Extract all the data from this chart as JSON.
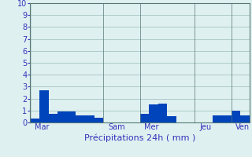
{
  "bar_values": [
    0.3,
    2.7,
    0.7,
    0.9,
    0.9,
    0.6,
    0.6,
    0.4,
    0.0,
    0.0,
    0.0,
    0.0,
    0.7,
    1.5,
    1.6,
    0.5,
    0.0,
    0.0,
    0.0,
    0.0,
    0.6,
    0.6,
    1.0,
    0.6
  ],
  "day_labels": [
    "Mar",
    "Sam",
    "Mer",
    "Jeu",
    "Ven"
  ],
  "xlabel": "Précipitations 24h ( mm )",
  "ylim": [
    0,
    10
  ],
  "yticks": [
    0,
    1,
    2,
    3,
    4,
    5,
    6,
    7,
    8,
    9,
    10
  ],
  "bar_color": "#0044bb",
  "background_color": "#dff0f0",
  "grid_color": "#aac8c8",
  "axis_label_color": "#3333bb",
  "tick_label_color": "#3333bb",
  "vline_color": "#557777",
  "xlabel_fontsize": 8,
  "tick_fontsize": 7,
  "day_boundaries": [
    0,
    8,
    12,
    18,
    22,
    24
  ]
}
